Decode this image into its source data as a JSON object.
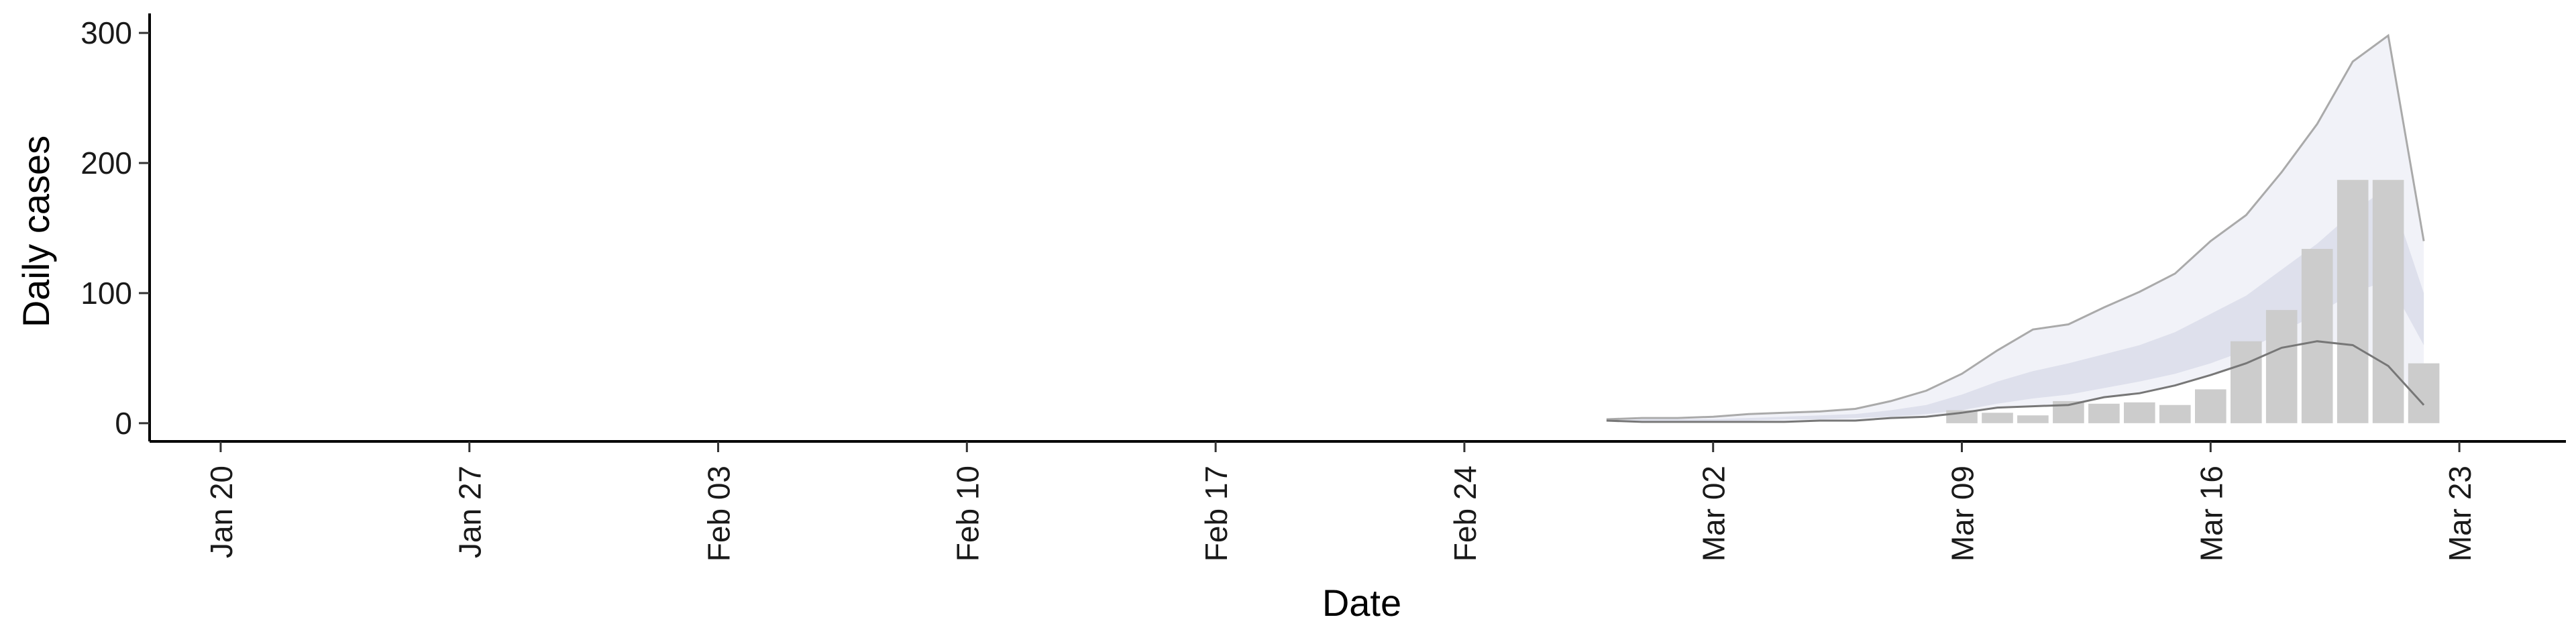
{
  "chart_data": {
    "type": "area",
    "xlabel": "Date",
    "ylabel": "Daily cases",
    "xlim": [
      "2020-01-18",
      "2020-03-26"
    ],
    "ylim": [
      -14,
      315
    ],
    "x_ticks": [
      {
        "date": "2020-01-20",
        "label": "Jan 20"
      },
      {
        "date": "2020-01-27",
        "label": "Jan 27"
      },
      {
        "date": "2020-02-03",
        "label": "Feb 03"
      },
      {
        "date": "2020-02-10",
        "label": "Feb 10"
      },
      {
        "date": "2020-02-17",
        "label": "Feb 17"
      },
      {
        "date": "2020-02-24",
        "label": "Feb 24"
      },
      {
        "date": "2020-03-02",
        "label": "Mar 02"
      },
      {
        "date": "2020-03-09",
        "label": "Mar 09"
      },
      {
        "date": "2020-03-16",
        "label": "Mar 16"
      },
      {
        "date": "2020-03-23",
        "label": "Mar 23"
      }
    ],
    "y_ticks": [
      {
        "value": 0,
        "label": "0"
      },
      {
        "value": 100,
        "label": "100"
      },
      {
        "value": 200,
        "label": "200"
      },
      {
        "value": 300,
        "label": "300"
      }
    ],
    "grid": false,
    "legend": "none",
    "bars": {
      "color": "#cccccc",
      "x": [
        "2020-03-09",
        "2020-03-10",
        "2020-03-11",
        "2020-03-12",
        "2020-03-13",
        "2020-03-14",
        "2020-03-15",
        "2020-03-16",
        "2020-03-17",
        "2020-03-18",
        "2020-03-19",
        "2020-03-20",
        "2020-03-21",
        "2020-03-22"
      ],
      "values": [
        10,
        8,
        6,
        17,
        15,
        16,
        14,
        26,
        63,
        87,
        134,
        187,
        187,
        46
      ]
    },
    "bands": {
      "x": [
        "2020-02-28",
        "2020-02-29",
        "2020-03-01",
        "2020-03-02",
        "2020-03-03",
        "2020-03-04",
        "2020-03-05",
        "2020-03-06",
        "2020-03-07",
        "2020-03-08",
        "2020-03-09",
        "2020-03-10",
        "2020-03-11",
        "2020-03-12",
        "2020-03-13",
        "2020-03-14",
        "2020-03-15",
        "2020-03-16",
        "2020-03-17",
        "2020-03-18",
        "2020-03-19",
        "2020-03-20",
        "2020-03-21",
        "2020-03-22"
      ],
      "outer": {
        "color": "#e8eaf3",
        "lower": [
          2,
          1,
          1,
          1,
          1,
          1,
          2,
          2,
          4,
          5,
          8,
          12,
          13,
          14,
          20,
          23,
          29,
          37,
          46,
          58,
          63,
          60,
          44,
          14
        ],
        "upper": [
          3,
          4,
          4,
          5,
          7,
          8,
          9,
          11,
          17,
          25,
          38,
          56,
          72,
          76,
          89,
          101,
          115,
          140,
          160,
          193,
          230,
          278,
          298,
          140
        ]
      },
      "inner": {
        "color": "#cdd1e2",
        "lower": [
          2,
          2,
          2,
          2,
          2,
          3,
          3,
          4,
          5,
          7,
          10,
          15,
          19,
          22,
          27,
          32,
          38,
          46,
          56,
          70,
          84,
          100,
          110,
          60
        ],
        "upper": [
          2,
          3,
          3,
          3,
          4,
          5,
          6,
          7,
          10,
          14,
          22,
          32,
          40,
          46,
          53,
          60,
          70,
          84,
          98,
          118,
          138,
          162,
          182,
          100
        ]
      },
      "upper_line_color": "#aaaaaa",
      "lower_line_color": "#777777"
    }
  }
}
